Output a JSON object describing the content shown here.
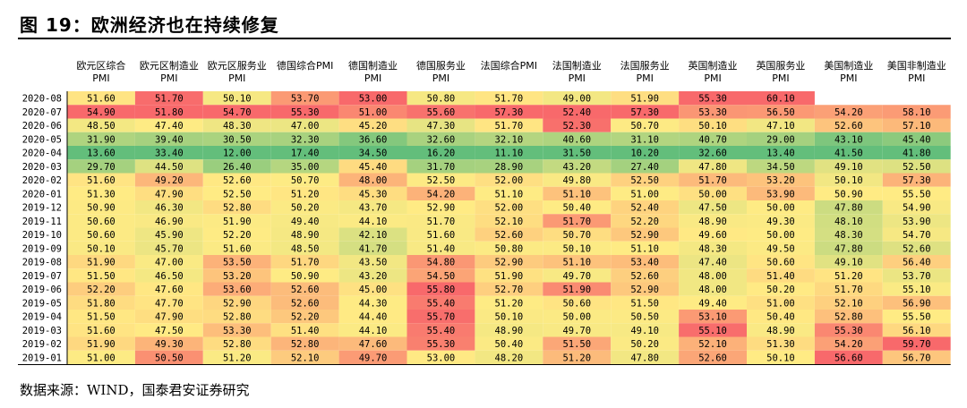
{
  "title": "图 19：欧洲经济也在持续修复",
  "source": "数据来源：WIND，国泰君安证券研究",
  "chart_data": {
    "type": "heatmap",
    "columns": [
      [
        "欧元区综合",
        "PMI"
      ],
      [
        "欧元区制造业",
        "PMI"
      ],
      [
        "欧元区服务业",
        "PMI"
      ],
      [
        "德国综合PMI",
        ""
      ],
      [
        "德国制造业",
        "PMI"
      ],
      [
        "德国服务业",
        "PMI"
      ],
      [
        "法国综合PMI",
        ""
      ],
      [
        "法国制造业",
        "PMI"
      ],
      [
        "法国服务业",
        "PMI"
      ],
      [
        "英国制造业",
        "PMI"
      ],
      [
        "英国服务业",
        "PMI"
      ],
      [
        "美国制造业",
        "PMI"
      ],
      [
        "美国非制造业",
        "PMI"
      ]
    ],
    "rows": [
      {
        "label": "2020-08",
        "values": [
          "51.60",
          "51.70",
          "50.10",
          "53.70",
          "53.00",
          "50.80",
          "51.70",
          "49.00",
          "51.90",
          "55.30",
          "60.10",
          null,
          null
        ]
      },
      {
        "label": "2020-07",
        "values": [
          "54.90",
          "51.80",
          "54.70",
          "55.30",
          "51.00",
          "55.60",
          "57.30",
          "52.40",
          "57.30",
          "53.30",
          "56.50",
          "54.20",
          "58.10"
        ]
      },
      {
        "label": "2020-06",
        "values": [
          "48.50",
          "47.40",
          "48.30",
          "47.00",
          "45.20",
          "47.30",
          "51.70",
          "52.30",
          "50.70",
          "50.10",
          "47.10",
          "52.60",
          "57.10"
        ]
      },
      {
        "label": "2020-05",
        "values": [
          "31.90",
          "39.40",
          "30.50",
          "32.30",
          "36.60",
          "32.60",
          "32.10",
          "40.60",
          "31.10",
          "40.70",
          "29.00",
          "43.10",
          "45.40"
        ]
      },
      {
        "label": "2020-04",
        "values": [
          "13.60",
          "33.40",
          "12.00",
          "17.40",
          "34.50",
          "16.20",
          "11.10",
          "31.50",
          "10.20",
          "32.60",
          "13.40",
          "41.50",
          "41.80"
        ]
      },
      {
        "label": "2020-03",
        "values": [
          "29.70",
          "44.50",
          "26.40",
          "35.00",
          "45.40",
          "31.70",
          "28.90",
          "43.20",
          "27.40",
          "47.80",
          "34.50",
          "49.10",
          "52.50"
        ]
      },
      {
        "label": "2020-02",
        "values": [
          "51.60",
          "49.20",
          "52.60",
          "50.70",
          "48.00",
          "52.50",
          "52.00",
          "49.80",
          "52.50",
          "51.70",
          "53.20",
          "50.10",
          "57.30"
        ]
      },
      {
        "label": "2020-01",
        "values": [
          "51.30",
          "47.90",
          "52.50",
          "51.20",
          "45.30",
          "54.20",
          "51.10",
          "51.10",
          "51.00",
          "50.00",
          "53.90",
          "50.90",
          "55.50"
        ]
      },
      {
        "label": "2019-12",
        "values": [
          "50.90",
          "46.30",
          "52.80",
          "50.20",
          "43.70",
          "52.90",
          "52.00",
          "50.40",
          "52.40",
          "47.50",
          "50.00",
          "47.80",
          "54.90"
        ]
      },
      {
        "label": "2019-11",
        "values": [
          "50.60",
          "46.90",
          "51.90",
          "49.40",
          "44.10",
          "51.70",
          "52.10",
          "51.70",
          "52.20",
          "48.90",
          "49.30",
          "48.10",
          "53.90"
        ]
      },
      {
        "label": "2019-10",
        "values": [
          "50.60",
          "45.90",
          "52.20",
          "48.90",
          "42.10",
          "51.60",
          "52.60",
          "50.70",
          "52.90",
          "49.60",
          "50.00",
          "48.30",
          "54.70"
        ]
      },
      {
        "label": "2019-09",
        "values": [
          "50.10",
          "45.70",
          "51.60",
          "48.50",
          "41.70",
          "51.40",
          "50.80",
          "50.10",
          "51.10",
          "48.30",
          "49.50",
          "47.80",
          "52.60"
        ]
      },
      {
        "label": "2019-08",
        "values": [
          "51.90",
          "47.00",
          "53.50",
          "51.70",
          "43.50",
          "54.80",
          "52.90",
          "51.10",
          "53.40",
          "47.40",
          "50.60",
          "49.10",
          "56.40"
        ]
      },
      {
        "label": "2019-07",
        "values": [
          "51.50",
          "46.50",
          "53.20",
          "50.90",
          "43.20",
          "54.50",
          "51.90",
          "49.70",
          "52.60",
          "48.00",
          "51.40",
          "51.20",
          "53.70"
        ]
      },
      {
        "label": "2019-06",
        "values": [
          "52.20",
          "47.60",
          "53.60",
          "52.60",
          "45.00",
          "55.80",
          "52.70",
          "51.90",
          "52.90",
          "48.00",
          "50.20",
          "51.70",
          "55.10"
        ]
      },
      {
        "label": "2019-05",
        "values": [
          "51.80",
          "47.70",
          "52.90",
          "52.60",
          "44.30",
          "55.40",
          "51.20",
          "50.60",
          "51.50",
          "49.40",
          "51.00",
          "52.10",
          "56.90"
        ]
      },
      {
        "label": "2019-04",
        "values": [
          "51.50",
          "47.90",
          "52.80",
          "52.20",
          "44.40",
          "55.70",
          "50.10",
          "50.00",
          "50.50",
          "53.10",
          "50.40",
          "52.80",
          "55.50"
        ]
      },
      {
        "label": "2019-03",
        "values": [
          "51.60",
          "47.50",
          "53.30",
          "51.40",
          "44.10",
          "55.40",
          "48.90",
          "49.70",
          "49.10",
          "55.10",
          "48.90",
          "55.30",
          "56.10"
        ]
      },
      {
        "label": "2019-02",
        "values": [
          "51.90",
          "49.30",
          "52.80",
          "52.80",
          "47.60",
          "55.30",
          "50.40",
          "51.50",
          "50.20",
          "52.10",
          "51.30",
          "54.20",
          "59.70"
        ]
      },
      {
        "label": "2019-01",
        "values": [
          "51.00",
          "50.50",
          "51.20",
          "52.10",
          "49.70",
          "53.00",
          "48.20",
          "51.20",
          "47.80",
          "52.60",
          "50.10",
          "56.60",
          "56.70"
        ]
      }
    ]
  }
}
